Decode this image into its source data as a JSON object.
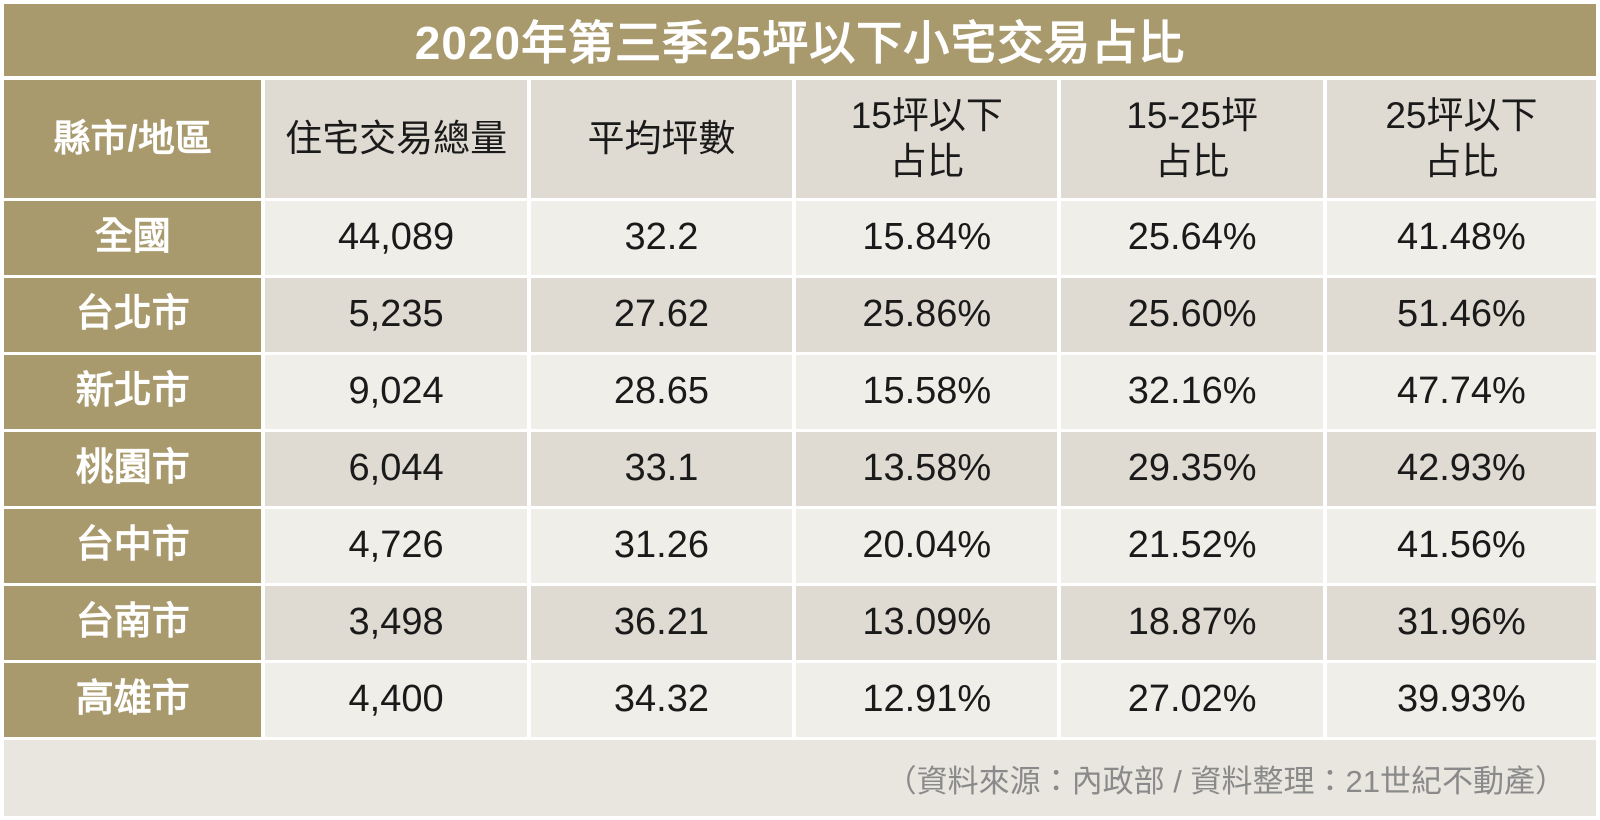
{
  "colors": {
    "tan": "#A99A6E",
    "row_light": "#F0EEE9",
    "row_dark": "#DFDAD2",
    "footer_bg": "#E9E6E0",
    "title_text": "#FFFFFF",
    "note_text": "#8A8A8A"
  },
  "chart_data": {
    "type": "table",
    "title": "2020年第三季25坪以下小宅交易占比",
    "columns": [
      "縣市/地區",
      "住宅交易總量",
      "平均坪數",
      "15坪以下\n占比",
      "15-25坪\n占比",
      "25坪以下\n占比"
    ],
    "rows": [
      [
        "全國",
        "44,089",
        "32.2",
        "15.84%",
        "25.64%",
        "41.48%"
      ],
      [
        "台北市",
        "5,235",
        "27.62",
        "25.86%",
        "25.60%",
        "51.46%"
      ],
      [
        "新北市",
        "9,024",
        "28.65",
        "15.58%",
        "32.16%",
        "47.74%"
      ],
      [
        "桃園市",
        "6,044",
        "33.1",
        "13.58%",
        "29.35%",
        "42.93%"
      ],
      [
        "台中市",
        "4,726",
        "31.26",
        "20.04%",
        "21.52%",
        "41.56%"
      ],
      [
        "台南市",
        "3,498",
        "36.21",
        "13.09%",
        "18.87%",
        "31.96%"
      ],
      [
        "高雄市",
        "4,400",
        "34.32",
        "12.91%",
        "27.02%",
        "39.93%"
      ]
    ],
    "source": "（資料來源：內政部 / 資料整理：21世紀不動產）"
  }
}
